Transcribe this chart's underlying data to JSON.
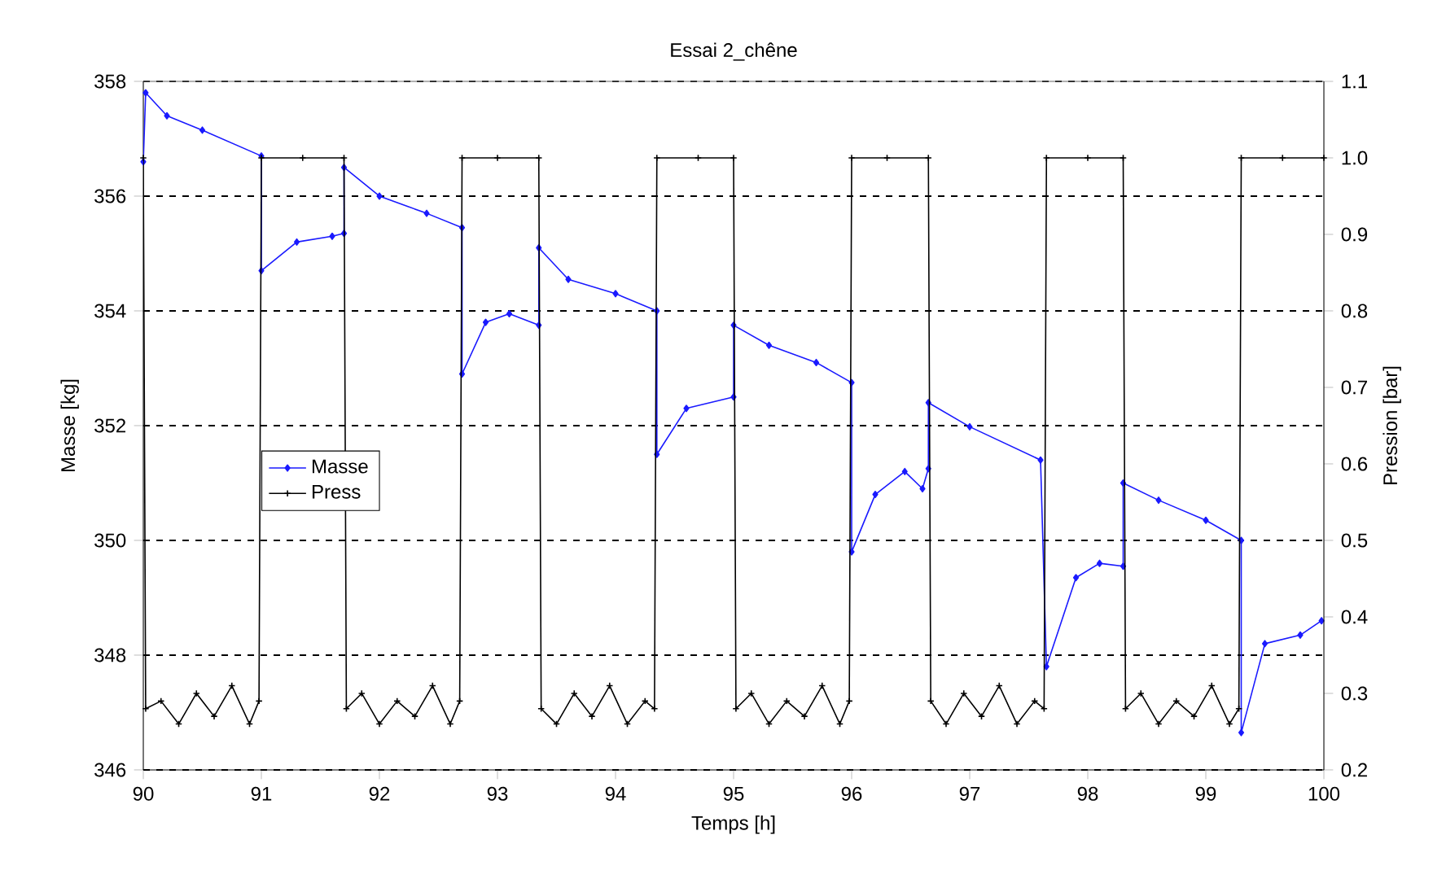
{
  "chart_data": {
    "type": "line",
    "title": "Essai 2_chêne",
    "xlabel": "Temps [h]",
    "ylabel": "Masse [kg]",
    "y2label": "Pression [bar]",
    "xlim": [
      90,
      100
    ],
    "xticks": [
      90,
      91,
      92,
      93,
      94,
      95,
      96,
      97,
      98,
      99,
      100
    ],
    "ylim": [
      346,
      358
    ],
    "yticks": [
      346,
      348,
      350,
      352,
      354,
      356,
      358
    ],
    "y2lim": [
      0.2,
      1.1
    ],
    "y2ticks": [
      0.2,
      0.3,
      0.4,
      0.5,
      0.6,
      0.7,
      0.8,
      0.9,
      {
        "value": 1.0,
        "label": "1.0"
      },
      1.1
    ],
    "grid": "y",
    "legend": "left",
    "series": [
      {
        "name": "Masse",
        "color": "#1a1aff",
        "marker": "diamond",
        "axis": "y",
        "x": [
          90.0,
          90.02,
          90.2,
          90.5,
          91.0,
          91.0,
          91.3,
          91.6,
          91.7,
          91.7,
          92.0,
          92.4,
          92.7,
          92.7,
          92.9,
          93.1,
          93.35,
          93.35,
          93.6,
          94.0,
          94.35,
          94.35,
          94.6,
          95.0,
          95.0,
          95.3,
          95.7,
          96.0,
          96.0,
          96.2,
          96.45,
          96.6,
          96.65,
          96.65,
          97.0,
          97.6,
          97.65,
          97.9,
          98.1,
          98.3,
          98.3,
          98.6,
          99.0,
          99.3,
          99.3,
          99.5,
          99.8,
          99.98
        ],
        "values": [
          356.6,
          357.8,
          357.4,
          357.15,
          356.7,
          354.7,
          355.2,
          355.3,
          355.35,
          356.5,
          356.0,
          355.7,
          355.45,
          352.9,
          353.8,
          353.95,
          353.75,
          355.1,
          354.55,
          354.3,
          354.0,
          351.5,
          352.3,
          352.5,
          353.75,
          353.4,
          353.1,
          352.75,
          349.8,
          350.8,
          351.2,
          350.9,
          351.25,
          352.4,
          351.98,
          351.4,
          347.8,
          349.35,
          349.6,
          349.55,
          351.0,
          350.7,
          350.35,
          350.0,
          346.65,
          348.2,
          348.35,
          348.6
        ]
      },
      {
        "name": "Press",
        "color": "#000000",
        "marker": "cross",
        "axis": "y2",
        "x": [
          90.0,
          90.02,
          90.15,
          90.3,
          90.45,
          90.6,
          90.75,
          90.9,
          90.98,
          91.0,
          91.35,
          91.7,
          91.72,
          91.85,
          92.0,
          92.15,
          92.3,
          92.45,
          92.6,
          92.68,
          92.7,
          93.0,
          93.35,
          93.37,
          93.5,
          93.65,
          93.8,
          93.95,
          94.1,
          94.25,
          94.33,
          94.35,
          94.7,
          95.0,
          95.02,
          95.15,
          95.3,
          95.45,
          95.6,
          95.75,
          95.9,
          95.98,
          96.0,
          96.3,
          96.65,
          96.67,
          96.8,
          96.95,
          97.1,
          97.25,
          97.4,
          97.55,
          97.63,
          97.65,
          98.0,
          98.3,
          98.32,
          98.45,
          98.6,
          98.75,
          98.9,
          99.05,
          99.2,
          99.28,
          99.3,
          99.65,
          100.0
        ],
        "values": [
          1.0,
          0.28,
          0.29,
          0.26,
          0.3,
          0.27,
          0.31,
          0.26,
          0.29,
          1.0,
          1.0,
          1.0,
          0.28,
          0.3,
          0.26,
          0.29,
          0.27,
          0.31,
          0.26,
          0.29,
          1.0,
          1.0,
          1.0,
          0.28,
          0.26,
          0.3,
          0.27,
          0.31,
          0.26,
          0.29,
          0.28,
          1.0,
          1.0,
          1.0,
          0.28,
          0.3,
          0.26,
          0.29,
          0.27,
          0.31,
          0.26,
          0.29,
          1.0,
          1.0,
          1.0,
          0.29,
          0.26,
          0.3,
          0.27,
          0.31,
          0.26,
          0.29,
          0.28,
          1.0,
          1.0,
          1.0,
          0.28,
          0.3,
          0.26,
          0.29,
          0.27,
          0.31,
          0.26,
          0.28,
          1.0,
          1.0,
          1.0
        ]
      }
    ]
  }
}
